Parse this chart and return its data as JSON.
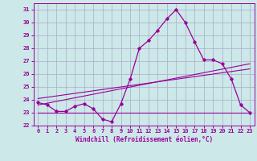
{
  "xlabel": "Windchill (Refroidissement éolien,°C)",
  "xlim": [
    -0.5,
    23.5
  ],
  "ylim": [
    22,
    31.5
  ],
  "yticks": [
    22,
    23,
    24,
    25,
    26,
    27,
    28,
    29,
    30,
    31
  ],
  "xticks": [
    0,
    1,
    2,
    3,
    4,
    5,
    6,
    7,
    8,
    9,
    10,
    11,
    12,
    13,
    14,
    15,
    16,
    17,
    18,
    19,
    20,
    21,
    22,
    23
  ],
  "background_color": "#cce8e8",
  "grid_color": "#aaaacc",
  "line_color": "#990099",
  "main_line": [
    [
      0,
      23.8
    ],
    [
      1,
      23.6
    ],
    [
      2,
      23.1
    ],
    [
      3,
      23.1
    ],
    [
      4,
      23.5
    ],
    [
      5,
      23.7
    ],
    [
      6,
      23.3
    ],
    [
      7,
      22.5
    ],
    [
      8,
      22.3
    ],
    [
      9,
      23.7
    ],
    [
      10,
      25.6
    ],
    [
      11,
      28.0
    ],
    [
      12,
      28.6
    ],
    [
      13,
      29.4
    ],
    [
      14,
      30.3
    ],
    [
      15,
      31.0
    ],
    [
      16,
      30.0
    ],
    [
      17,
      28.5
    ],
    [
      18,
      27.1
    ],
    [
      19,
      27.1
    ],
    [
      20,
      26.8
    ],
    [
      21,
      25.6
    ],
    [
      22,
      23.6
    ],
    [
      23,
      23.0
    ]
  ],
  "flat_line": [
    [
      0,
      23.0
    ],
    [
      23,
      23.0
    ]
  ],
  "trend_line1": [
    [
      0,
      23.6
    ],
    [
      23,
      26.8
    ]
  ],
  "trend_line2": [
    [
      0,
      24.1
    ],
    [
      23,
      26.4
    ]
  ]
}
